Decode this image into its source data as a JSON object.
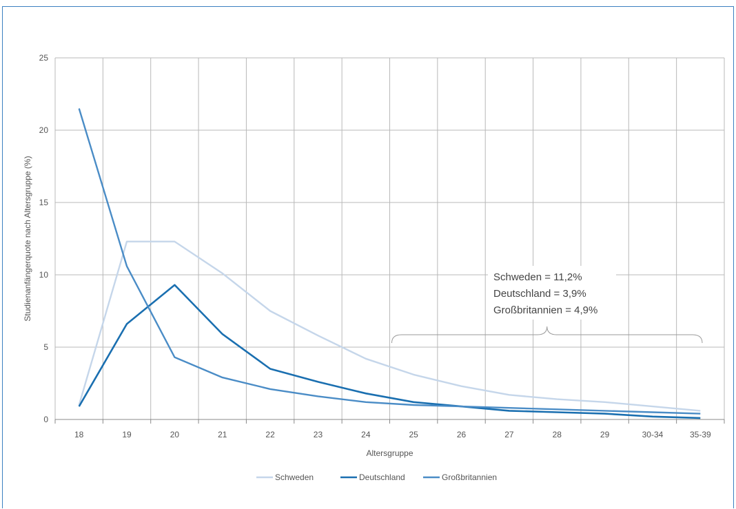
{
  "chart_data": {
    "type": "line",
    "xlabel": "Altersgruppe",
    "ylabel": "Studienanfängerquote nach Altersgruppe (%)",
    "categories": [
      "18",
      "19",
      "20",
      "21",
      "22",
      "23",
      "24",
      "25",
      "26",
      "27",
      "28",
      "29",
      "30-34",
      "35-39"
    ],
    "ylim": [
      0,
      25
    ],
    "yticks": [
      "0",
      "5",
      "10",
      "15",
      "20",
      "25"
    ],
    "grid": true,
    "legend_position": "bottom",
    "series": [
      {
        "name": "Schweden",
        "color": "#c5d6ea",
        "values": [
          1.0,
          12.3,
          12.3,
          10.1,
          7.5,
          5.8,
          4.2,
          3.1,
          2.3,
          1.7,
          1.4,
          1.2,
          0.9,
          0.6
        ]
      },
      {
        "name": "Deutschland",
        "color": "#1a6fb0",
        "values": [
          0.9,
          6.6,
          9.3,
          5.9,
          3.5,
          2.6,
          1.8,
          1.2,
          0.9,
          0.6,
          0.5,
          0.4,
          0.2,
          0.1
        ]
      },
      {
        "name": "Großbritannien",
        "color": "#4a8cc6",
        "values": [
          21.5,
          10.6,
          4.3,
          2.9,
          2.1,
          1.6,
          1.2,
          1.0,
          0.9,
          0.8,
          0.7,
          0.6,
          0.5,
          0.4
        ]
      }
    ],
    "annotation": {
      "lines": [
        "Schweden = 11,2%",
        "Deutschland = 3,9%",
        "Großbritannien = 4,9%"
      ],
      "from_category": "25",
      "to_category": "35-39"
    }
  }
}
